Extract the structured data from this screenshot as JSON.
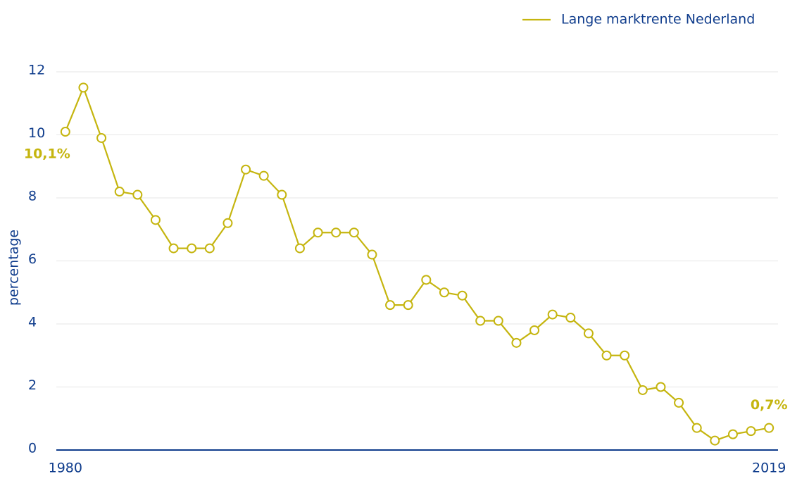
{
  "chart_data": {
    "type": "line",
    "y_label": "percentage",
    "x": [
      1980,
      1981,
      1982,
      1983,
      1984,
      1985,
      1986,
      1987,
      1988,
      1989,
      1990,
      1991,
      1992,
      1993,
      1994,
      1995,
      1996,
      1997,
      1998,
      1999,
      2000,
      2001,
      2002,
      2003,
      2004,
      2005,
      2006,
      2007,
      2008,
      2009,
      2010,
      2011,
      2012,
      2013,
      2014,
      2015,
      2016,
      2017,
      2018,
      2019
    ],
    "series": [
      {
        "name": "Lange marktrente Nederland",
        "color": "#c5b50f",
        "values": [
          10.1,
          11.5,
          9.9,
          8.2,
          8.1,
          7.3,
          6.4,
          6.4,
          6.4,
          7.2,
          8.9,
          8.7,
          8.1,
          6.4,
          6.9,
          6.9,
          6.9,
          6.2,
          4.6,
          4.6,
          5.4,
          5.0,
          4.9,
          4.1,
          4.1,
          3.4,
          3.8,
          4.3,
          4.2,
          3.7,
          3.0,
          3.0,
          1.9,
          2.0,
          1.5,
          0.7,
          0.3,
          0.5,
          0.6,
          0.7
        ],
        "value_labels": [
          "10,1%",
          null,
          null,
          null,
          null,
          null,
          null,
          null,
          null,
          null,
          null,
          null,
          null,
          null,
          null,
          null,
          null,
          null,
          null,
          null,
          null,
          null,
          null,
          null,
          null,
          null,
          null,
          null,
          null,
          null,
          null,
          null,
          null,
          null,
          null,
          null,
          null,
          null,
          null,
          "0,7%"
        ]
      }
    ],
    "xlim": [
      1979.5,
      2019.5
    ],
    "xticks": [
      1980,
      2019
    ],
    "ylim": [
      0,
      12
    ],
    "yticks": [
      0,
      2,
      4,
      6,
      8,
      10,
      12
    ],
    "grid": true,
    "legend": "top-right"
  }
}
